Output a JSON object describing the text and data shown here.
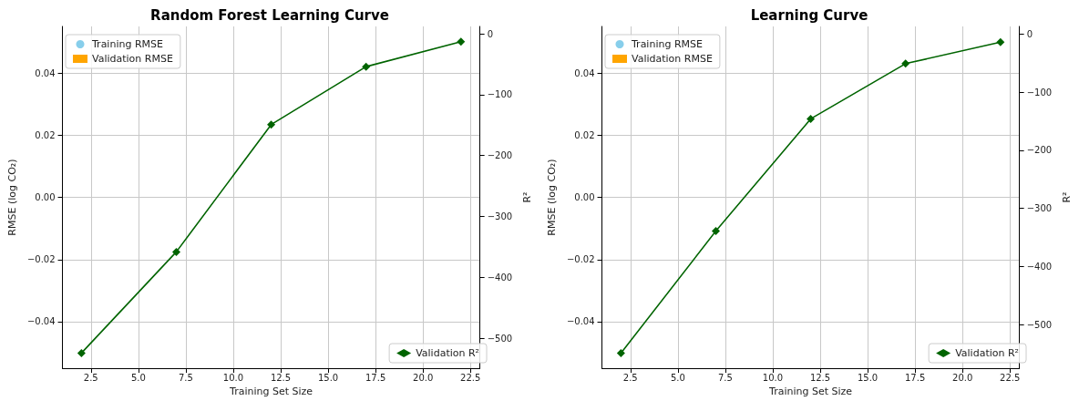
{
  "chart_data": [
    {
      "type": "line",
      "title": "Random Forest Learning Curve",
      "xlabel": "Training Set Size",
      "ylabel": "RMSE (log CO₂)",
      "y2label": "R²",
      "x": [
        2,
        7,
        12,
        17,
        22
      ],
      "series": [
        {
          "name": "Training RMSE",
          "color": "#87ceeb",
          "marker": "circle",
          "line_style": "solid",
          "values": [
            null,
            null,
            null,
            null,
            null
          ]
        },
        {
          "name": "Validation RMSE",
          "color": "#ffa500",
          "marker": "square",
          "line_style": "dashed",
          "values": [
            null,
            null,
            null,
            null,
            null
          ]
        },
        {
          "name": "Validation R²",
          "color": "#006400",
          "marker": "diamond",
          "line_style": "solid",
          "axis": "y2",
          "values": [
            -524,
            -358,
            -149,
            -54,
            -13
          ]
        }
      ],
      "xlim": [
        1,
        23
      ],
      "xticks": [
        {
          "value": 2.5,
          "label": "2.5"
        },
        {
          "value": 5,
          "label": "5.0"
        },
        {
          "value": 7.5,
          "label": "7.5"
        },
        {
          "value": 10,
          "label": "10.0"
        },
        {
          "value": 12.5,
          "label": "12.5"
        },
        {
          "value": 15,
          "label": "15.0"
        },
        {
          "value": 17.5,
          "label": "17.5"
        },
        {
          "value": 20,
          "label": "20.0"
        },
        {
          "value": 22.5,
          "label": "22.5"
        }
      ],
      "ylim": [
        -0.055,
        0.055
      ],
      "yticks": [
        {
          "value": -0.04,
          "label": "−0.04"
        },
        {
          "value": -0.02,
          "label": "−0.02"
        },
        {
          "value": 0,
          "label": "0.00"
        },
        {
          "value": 0.02,
          "label": "0.02"
        },
        {
          "value": 0.04,
          "label": "0.04"
        }
      ],
      "y2lim": [
        -549,
        12
      ],
      "y2ticks": [
        {
          "value": -500,
          "label": "−500"
        },
        {
          "value": -400,
          "label": "−400"
        },
        {
          "value": -300,
          "label": "−300"
        },
        {
          "value": -200,
          "label": "−200"
        },
        {
          "value": -100,
          "label": "−100"
        },
        {
          "value": 0,
          "label": "0"
        }
      ],
      "grid": true,
      "legend": [
        "top left",
        "bottom right"
      ]
    },
    {
      "type": "line",
      "title": "Learning Curve",
      "xlabel": "Training Set Size",
      "ylabel": "RMSE (log CO₂)",
      "y2label": "R²",
      "x": [
        2,
        7,
        12,
        17,
        22
      ],
      "series": [
        {
          "name": "Training RMSE",
          "color": "#87ceeb",
          "marker": "circle",
          "line_style": "solid",
          "values": [
            null,
            null,
            null,
            null,
            null
          ]
        },
        {
          "name": "Validation RMSE",
          "color": "#ffa500",
          "marker": "square",
          "line_style": "dashed",
          "values": [
            null,
            null,
            null,
            null,
            null
          ]
        },
        {
          "name": "Validation R²",
          "color": "#006400",
          "marker": "diamond",
          "line_style": "solid",
          "axis": "y2",
          "values": [
            -549,
            -339,
            -146,
            -51,
            -14
          ]
        }
      ],
      "xlim": [
        1,
        23
      ],
      "xticks": [
        {
          "value": 2.5,
          "label": "2.5"
        },
        {
          "value": 5,
          "label": "5.0"
        },
        {
          "value": 7.5,
          "label": "7.5"
        },
        {
          "value": 10,
          "label": "10.0"
        },
        {
          "value": 12.5,
          "label": "12.5"
        },
        {
          "value": 15,
          "label": "15.0"
        },
        {
          "value": 17.5,
          "label": "17.5"
        },
        {
          "value": 20,
          "label": "20.0"
        },
        {
          "value": 22.5,
          "label": "22.5"
        }
      ],
      "ylim": [
        -0.055,
        0.055
      ],
      "yticks": [
        {
          "value": -0.04,
          "label": "−0.04"
        },
        {
          "value": -0.02,
          "label": "−0.02"
        },
        {
          "value": 0,
          "label": "0.00"
        },
        {
          "value": 0.02,
          "label": "0.02"
        },
        {
          "value": 0.04,
          "label": "0.04"
        }
      ],
      "y2lim": [
        -575,
        13
      ],
      "y2ticks": [
        {
          "value": -500,
          "label": "−500"
        },
        {
          "value": -400,
          "label": "−400"
        },
        {
          "value": -300,
          "label": "−300"
        },
        {
          "value": -200,
          "label": "−200"
        },
        {
          "value": -100,
          "label": "−100"
        },
        {
          "value": 0,
          "label": "0"
        }
      ],
      "grid": true,
      "legend": [
        "top left",
        "bottom right"
      ]
    }
  ]
}
